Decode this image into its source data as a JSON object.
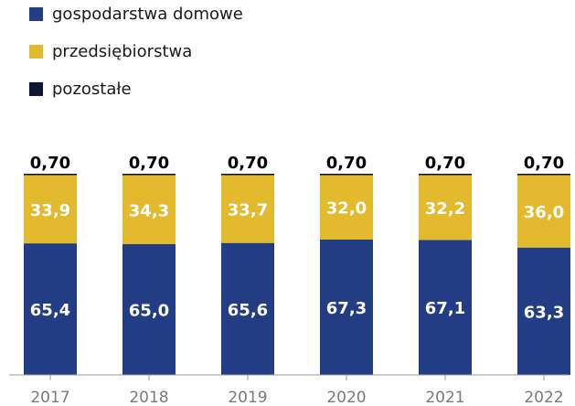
{
  "chart_data": {
    "type": "bar",
    "stacked": true,
    "categories": [
      "2017",
      "2018",
      "2019",
      "2020",
      "2021",
      "2022"
    ],
    "series": [
      {
        "name": "gospodarstwa domowe",
        "color": "#233d85",
        "values": [
          65.4,
          65.0,
          65.6,
          67.3,
          67.1,
          63.3
        ],
        "labels": [
          "65,4",
          "65,0",
          "65,6",
          "67,3",
          "67,1",
          "63,3"
        ]
      },
      {
        "name": "przedsiębiorstwa",
        "color": "#e3b92d",
        "values": [
          33.9,
          34.3,
          33.7,
          32.0,
          32.2,
          36.0
        ],
        "labels": [
          "33,9",
          "34,3",
          "33,7",
          "32,0",
          "32,2",
          "36,0"
        ]
      },
      {
        "name": "pozostałe",
        "color": "#0c1533",
        "values": [
          0.7,
          0.7,
          0.7,
          0.7,
          0.7,
          0.7
        ],
        "labels": [
          "0,70",
          "0,70",
          "0,70",
          "0,70",
          "0,70",
          "0,70"
        ]
      }
    ],
    "ylim": [
      0,
      100
    ],
    "grid": false,
    "legend_position": "top-left"
  }
}
